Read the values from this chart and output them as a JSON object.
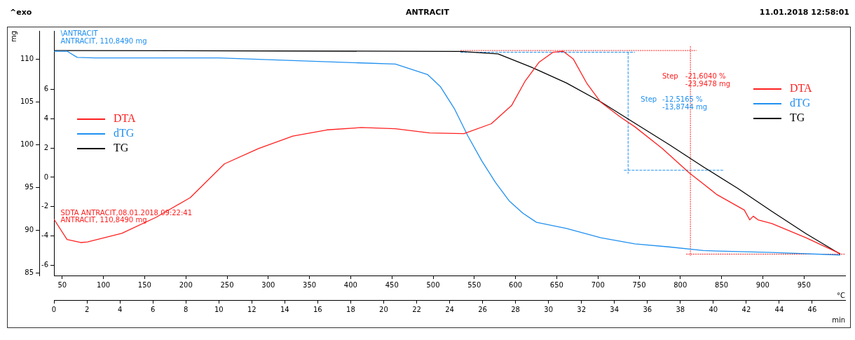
{
  "chart_data": {
    "type": "line",
    "title": "ANTRACIT",
    "xlabel": "min",
    "x2label": "°C",
    "ylabel": "mg",
    "xlim": [
      0,
      48
    ],
    "xticks": [
      0,
      2,
      4,
      6,
      8,
      10,
      12,
      14,
      16,
      18,
      20,
      22,
      24,
      26,
      28,
      30,
      32,
      34,
      36,
      38,
      40,
      42,
      44,
      46
    ],
    "x2lim": [
      40,
      1000
    ],
    "x2ticks": [
      50,
      100,
      150,
      200,
      250,
      300,
      350,
      400,
      450,
      500,
      550,
      600,
      650,
      700,
      750,
      800,
      850,
      900,
      950
    ],
    "ylim": [
      84.7,
      113.3
    ],
    "yticks": [
      85,
      90,
      95,
      100,
      105,
      110
    ],
    "y2lim": [
      -6.7,
      10
    ],
    "y2ticks": [
      -6,
      -4,
      -2,
      0,
      2,
      4,
      6
    ],
    "grid": false,
    "legend": "right",
    "marker": "none",
    "line_style": "solid",
    "series": [
      {
        "name": "DTA",
        "color": "#ff2020",
        "axis": "y2",
        "x": [
          0,
          0.79,
          1.62,
          2.03,
          4.11,
          6.19,
          8.26,
          10.34,
          12.41,
          14.49,
          16.56,
          18.64,
          20.71,
          22.79,
          24.87,
          26.53,
          27.77,
          28.6,
          29.43,
          30.26,
          30.88,
          31.51,
          32.34,
          33.17,
          34.41,
          35.24,
          36.9,
          38.56,
          40.22,
          41.88,
          42.21,
          42.42,
          42.71,
          43.55,
          45.62,
          47.7
        ],
        "values": [
          -2.86,
          -4.24,
          -4.45,
          -4.41,
          -3.82,
          -2.73,
          -1.39,
          0.92,
          1.97,
          2.82,
          3.24,
          3.4,
          3.32,
          3.03,
          2.98,
          3.66,
          4.92,
          6.6,
          7.86,
          8.53,
          8.61,
          8.07,
          6.39,
          5.13,
          4.08,
          3.45,
          1.97,
          0.29,
          -1.18,
          -2.23,
          -2.9,
          -2.65,
          -2.9,
          -3.15,
          -4.12,
          -5.21
        ]
      },
      {
        "name": "dTG",
        "color": "#2090f0",
        "axis": "y2",
        "x": [
          0,
          0.79,
          1.41,
          2.5,
          10,
          20.71,
          22.66,
          23.45,
          24.28,
          25.11,
          25.95,
          26.78,
          27.61,
          28.44,
          29.27,
          31.09,
          33.17,
          35.24,
          37.32,
          39.39,
          43.55,
          47.7
        ],
        "values": [
          8.61,
          8.61,
          8.19,
          8.15,
          8.15,
          7.73,
          7.02,
          6.18,
          4.71,
          2.82,
          1.13,
          -0.34,
          -1.6,
          -2.44,
          -3.07,
          -3.49,
          -4.12,
          -4.54,
          -4.75,
          -5.0,
          -5.13,
          -5.3
        ]
      },
      {
        "name": "TG",
        "color": "#000000",
        "x": [
          0,
          24.66,
          26.94,
          29.02,
          31.09,
          33.17,
          35.24,
          37.32,
          39.39,
          41.47,
          43.55,
          45.62,
          47.7
        ],
        "values": [
          111.0,
          110.9,
          110.6,
          109.0,
          107.2,
          105.0,
          102.5,
          100.0,
          97.4,
          94.9,
          92.2,
          89.6,
          87.2
        ]
      },
      {
        "color": "#ff2020",
        "line_style": "dotted",
        "x": [
          24.66,
          38.98
        ],
        "values": [
          111.0,
          111.0
        ]
      },
      {
        "color": "#ff2020",
        "line_style": "dotted",
        "x": [
          38.61,
          38.61
        ],
        "values": [
          111.5,
          87.0
        ]
      },
      {
        "color": "#ff2020",
        "line_style": "dotted",
        "x": [
          38.36,
          48
        ],
        "values": [
          87.2,
          87.2
        ]
      },
      {
        "color": "#2090f0",
        "line_style": "dashed",
        "x": [
          24.66,
          35.24
        ],
        "values": [
          110.8,
          110.8
        ]
      },
      {
        "color": "#2090f0",
        "line_style": "dashed",
        "x": [
          34.83,
          34.83
        ],
        "values": [
          110.8,
          96.6
        ]
      },
      {
        "color": "#2090f0",
        "line_style": "dashed",
        "x": [
          34.58,
          40.64
        ],
        "values": [
          97.0,
          97.0
        ]
      }
    ],
    "annotations": [
      "^exo",
      "11.01.2018 12:58:01",
      "\\ANTRACIT",
      "ANTRACIT, 110,8490 mg",
      "SDTA ANTRACIT,08.01.2018 09:22:41",
      "ANTRACIT, 110,8490 mg",
      "Step",
      "-21,6040 %",
      "-23,9478 mg",
      "Step",
      "-12,5165 %",
      "-13,8744 mg"
    ]
  }
}
